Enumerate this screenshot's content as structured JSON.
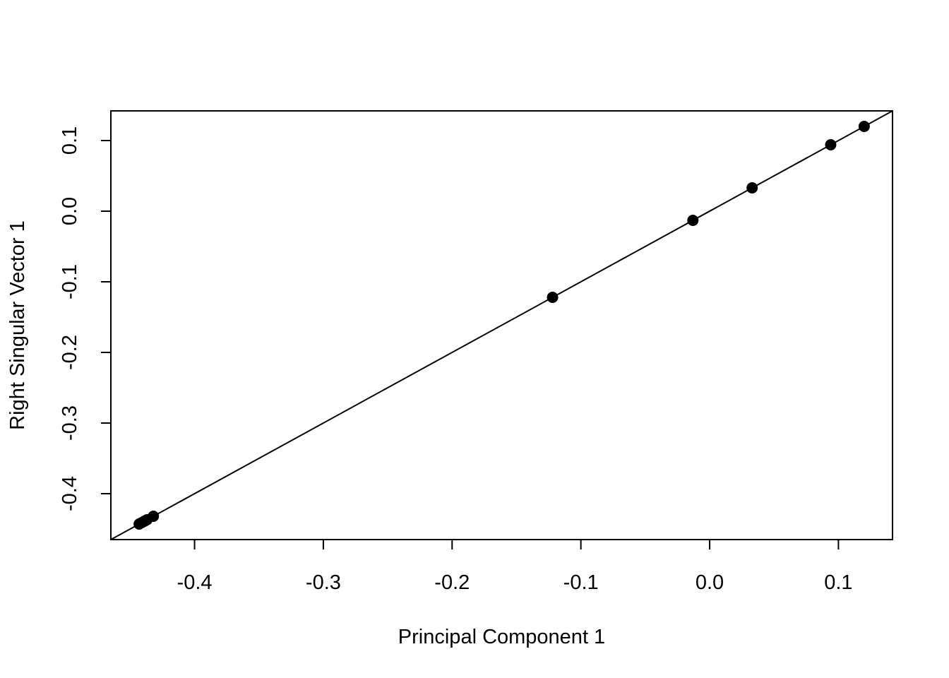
{
  "chart_data": {
    "type": "scatter",
    "title": "",
    "xlabel": "Principal Component 1",
    "ylabel": "Right Singular Vector 1",
    "xlim": [
      -0.465,
      0.142
    ],
    "ylim": [
      -0.465,
      0.142
    ],
    "x_ticks": [
      -0.4,
      -0.3,
      -0.2,
      -0.1,
      0.0,
      0.1
    ],
    "x_tick_labels": [
      "-0.4",
      "-0.3",
      "-0.2",
      "-0.1",
      "0.0",
      "0.1"
    ],
    "y_ticks": [
      -0.4,
      -0.3,
      -0.2,
      -0.1,
      0.0,
      0.1
    ],
    "y_tick_labels": [
      "-0.4",
      "-0.3",
      "-0.2",
      "-0.1",
      "0.0",
      "0.1"
    ],
    "grid": false,
    "legend": "none",
    "reference_line": {
      "intercept": 0,
      "slope": 1
    },
    "series": [
      {
        "points": [
          {
            "x": -0.443,
            "y": -0.443
          },
          {
            "x": -0.441,
            "y": -0.441
          },
          {
            "x": -0.439,
            "y": -0.439
          },
          {
            "x": -0.437,
            "y": -0.437
          },
          {
            "x": -0.432,
            "y": -0.432
          },
          {
            "x": -0.122,
            "y": -0.122
          },
          {
            "x": -0.013,
            "y": -0.013
          },
          {
            "x": 0.033,
            "y": 0.033
          },
          {
            "x": 0.094,
            "y": 0.094
          },
          {
            "x": 0.12,
            "y": 0.12
          }
        ]
      }
    ],
    "colors": {
      "points": "#000000",
      "line": "#000000",
      "frame": "#000000"
    }
  }
}
